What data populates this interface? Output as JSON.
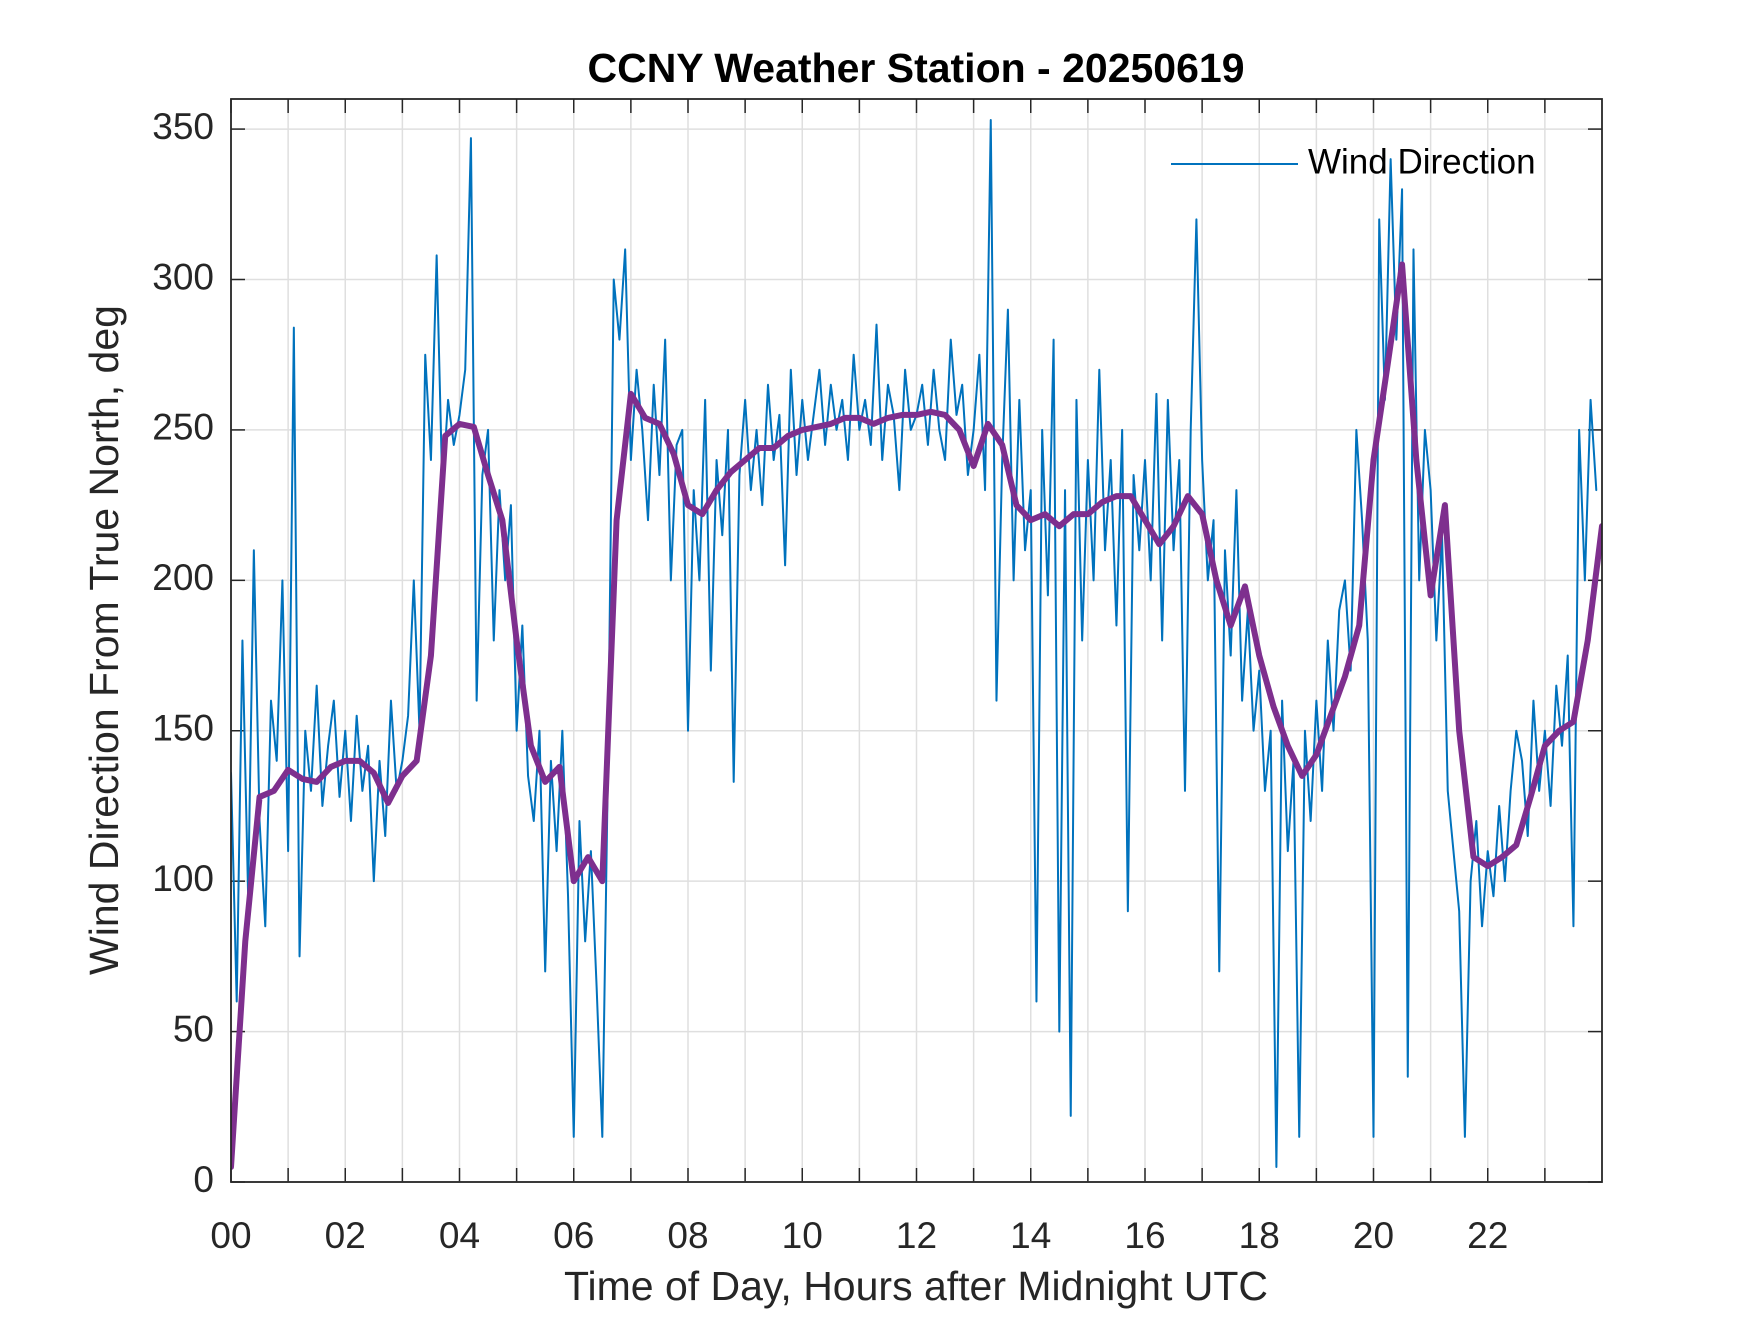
{
  "chart_data": {
    "type": "line",
    "title": "CCNY Weather Station - 20250619",
    "xlabel": "Time of Day, Hours after Midnight UTC",
    "ylabel": "Wind Direction From True North, deg",
    "xlim": [
      0,
      24
    ],
    "ylim": [
      0,
      360
    ],
    "xticks": [
      {
        "value": 0,
        "label": "00"
      },
      {
        "value": 2,
        "label": "02"
      },
      {
        "value": 4,
        "label": "04"
      },
      {
        "value": 6,
        "label": "06"
      },
      {
        "value": 8,
        "label": "08"
      },
      {
        "value": 10,
        "label": "10"
      },
      {
        "value": 12,
        "label": "12"
      },
      {
        "value": 14,
        "label": "14"
      },
      {
        "value": 16,
        "label": "16"
      },
      {
        "value": 18,
        "label": "18"
      },
      {
        "value": 20,
        "label": "20"
      },
      {
        "value": 22,
        "label": "22"
      }
    ],
    "xminorticks": [
      1,
      3,
      5,
      7,
      9,
      11,
      13,
      15,
      17,
      19,
      21,
      23
    ],
    "yticks": [
      0,
      50,
      100,
      150,
      200,
      250,
      300,
      350
    ],
    "grid": true,
    "legend": "top-right",
    "series": [
      {
        "name": "Wind Direction",
        "color": "#0072bd",
        "x": [
          0,
          0.1,
          0.2,
          0.3,
          0.4,
          0.5,
          0.6,
          0.7,
          0.8,
          0.9,
          1,
          1.1,
          1.2,
          1.3,
          1.4,
          1.5,
          1.6,
          1.7,
          1.8,
          1.9,
          2,
          2.1,
          2.2,
          2.3,
          2.4,
          2.5,
          2.6,
          2.7,
          2.8,
          2.9,
          3,
          3.1,
          3.2,
          3.3,
          3.4,
          3.5,
          3.6,
          3.7,
          3.8,
          3.9,
          4,
          4.1,
          4.2,
          4.3,
          4.4,
          4.5,
          4.6,
          4.7,
          4.8,
          4.9,
          5,
          5.1,
          5.2,
          5.3,
          5.4,
          5.5,
          5.6,
          5.7,
          5.8,
          5.9,
          6,
          6.1,
          6.2,
          6.3,
          6.4,
          6.5,
          6.6,
          6.7,
          6.8,
          6.9,
          7,
          7.1,
          7.2,
          7.3,
          7.4,
          7.5,
          7.6,
          7.7,
          7.8,
          7.9,
          8,
          8.1,
          8.2,
          8.3,
          8.4,
          8.5,
          8.6,
          8.7,
          8.8,
          8.9,
          9,
          9.1,
          9.2,
          9.3,
          9.4,
          9.5,
          9.6,
          9.7,
          9.8,
          9.9,
          10,
          10.1,
          10.2,
          10.3,
          10.4,
          10.5,
          10.6,
          10.7,
          10.8,
          10.9,
          11,
          11.1,
          11.2,
          11.3,
          11.4,
          11.5,
          11.6,
          11.7,
          11.8,
          11.9,
          12,
          12.1,
          12.2,
          12.3,
          12.4,
          12.5,
          12.6,
          12.7,
          12.8,
          12.9,
          13,
          13.1,
          13.2,
          13.3,
          13.4,
          13.5,
          13.6,
          13.7,
          13.8,
          13.9,
          14,
          14.1,
          14.2,
          14.3,
          14.4,
          14.5,
          14.6,
          14.7,
          14.8,
          14.9,
          15,
          15.1,
          15.2,
          15.3,
          15.4,
          15.5,
          15.6,
          15.7,
          15.8,
          15.9,
          16,
          16.1,
          16.2,
          16.3,
          16.4,
          16.5,
          16.6,
          16.7,
          16.8,
          16.9,
          17,
          17.1,
          17.2,
          17.3,
          17.4,
          17.5,
          17.6,
          17.7,
          17.8,
          17.9,
          18,
          18.1,
          18.2,
          18.3,
          18.4,
          18.5,
          18.6,
          18.7,
          18.8,
          18.9,
          19,
          19.1,
          19.2,
          19.3,
          19.4,
          19.5,
          19.6,
          19.7,
          19.8,
          19.9,
          20,
          20.1,
          20.2,
          20.3,
          20.4,
          20.5,
          20.6,
          20.7,
          20.8,
          20.9,
          21,
          21.1,
          21.2,
          21.3,
          21.4,
          21.5,
          21.6,
          21.7,
          21.8,
          21.9,
          22,
          22.1,
          22.2,
          22.3,
          22.4,
          22.5,
          22.6,
          22.7,
          22.8,
          22.9,
          23,
          23.1,
          23.2,
          23.3,
          23.4,
          23.5,
          23.6,
          23.7,
          23.8,
          23.9
        ],
        "values": [
          136,
          60,
          180,
          95,
          210,
          120,
          85,
          160,
          140,
          200,
          110,
          284,
          75,
          150,
          130,
          165,
          125,
          145,
          160,
          128,
          150,
          120,
          155,
          130,
          145,
          100,
          140,
          115,
          160,
          130,
          140,
          155,
          200,
          150,
          275,
          240,
          308,
          230,
          260,
          245,
          255,
          270,
          347,
          160,
          235,
          250,
          180,
          230,
          200,
          225,
          150,
          185,
          135,
          120,
          150,
          70,
          140,
          110,
          150,
          95,
          15,
          120,
          80,
          110,
          65,
          15,
          140,
          300,
          280,
          310,
          240,
          270,
          250,
          220,
          265,
          235,
          280,
          200,
          245,
          250,
          150,
          230,
          200,
          260,
          170,
          240,
          215,
          250,
          133,
          235,
          260,
          230,
          250,
          225,
          265,
          240,
          255,
          205,
          270,
          235,
          260,
          240,
          255,
          270,
          245,
          265,
          250,
          260,
          240,
          275,
          250,
          260,
          245,
          285,
          240,
          265,
          255,
          230,
          270,
          250,
          255,
          265,
          245,
          270,
          250,
          240,
          280,
          255,
          265,
          235,
          250,
          275,
          230,
          353,
          160,
          240,
          290,
          200,
          260,
          210,
          230,
          60,
          250,
          195,
          280,
          50,
          230,
          22,
          260,
          180,
          240,
          200,
          270,
          210,
          240,
          185,
          250,
          90,
          235,
          210,
          240,
          200,
          262,
          180,
          260,
          210,
          240,
          130,
          250,
          320,
          240,
          200,
          220,
          70,
          210,
          175,
          230,
          160,
          190,
          150,
          170,
          130,
          150,
          5,
          160,
          110,
          140,
          15,
          150,
          120,
          160,
          130,
          180,
          150,
          190,
          200,
          170,
          250,
          220,
          180,
          15,
          320,
          260,
          340,
          280,
          330,
          35,
          310,
          200,
          250,
          230,
          180,
          215,
          130,
          110,
          90,
          15,
          100,
          120,
          85,
          110,
          95,
          125,
          100,
          130,
          150,
          140,
          115,
          160,
          130,
          150,
          125,
          165,
          145,
          175,
          85,
          250,
          200,
          260,
          230
        ]
      },
      {
        "color": "#7e2f8e",
        "x": [
          0,
          0.25,
          0.5,
          0.75,
          1,
          1.25,
          1.5,
          1.75,
          2,
          2.25,
          2.5,
          2.75,
          3,
          3.25,
          3.5,
          3.75,
          4,
          4.25,
          4.5,
          4.75,
          5,
          5.25,
          5.5,
          5.75,
          6,
          6.25,
          6.5,
          6.75,
          7,
          7.25,
          7.5,
          7.75,
          8,
          8.25,
          8.5,
          8.75,
          9,
          9.25,
          9.5,
          9.75,
          10,
          10.25,
          10.5,
          10.75,
          11,
          11.25,
          11.5,
          11.75,
          12,
          12.25,
          12.5,
          12.75,
          13,
          13.25,
          13.5,
          13.75,
          14,
          14.25,
          14.5,
          14.75,
          15,
          15.25,
          15.5,
          15.75,
          16,
          16.25,
          16.5,
          16.75,
          17,
          17.25,
          17.5,
          17.75,
          18,
          18.25,
          18.5,
          18.75,
          19,
          19.25,
          19.5,
          19.75,
          20,
          20.25,
          20.5,
          20.75,
          21,
          21.25,
          21.5,
          21.75,
          22,
          22.25,
          22.5,
          22.75,
          23,
          23.25,
          23.5,
          23.75,
          24
        ],
        "values": [
          5,
          80,
          128,
          130,
          137,
          134,
          133,
          138,
          140,
          140,
          136,
          126,
          135,
          140,
          175,
          248,
          252,
          251,
          235,
          220,
          180,
          145,
          133,
          138,
          100,
          108,
          100,
          220,
          262,
          254,
          252,
          242,
          225,
          222,
          230,
          236,
          240,
          244,
          244,
          248,
          250,
          251,
          252,
          254,
          254,
          252,
          254,
          255,
          255,
          256,
          255,
          250,
          238,
          252,
          245,
          225,
          220,
          222,
          218,
          222,
          222,
          226,
          228,
          228,
          220,
          212,
          218,
          228,
          222,
          200,
          185,
          198,
          175,
          158,
          145,
          135,
          142,
          155,
          168,
          185,
          240,
          272,
          305,
          240,
          195,
          225,
          150,
          108,
          105,
          108,
          112,
          128,
          145,
          150,
          153,
          180,
          218
        ]
      }
    ]
  }
}
